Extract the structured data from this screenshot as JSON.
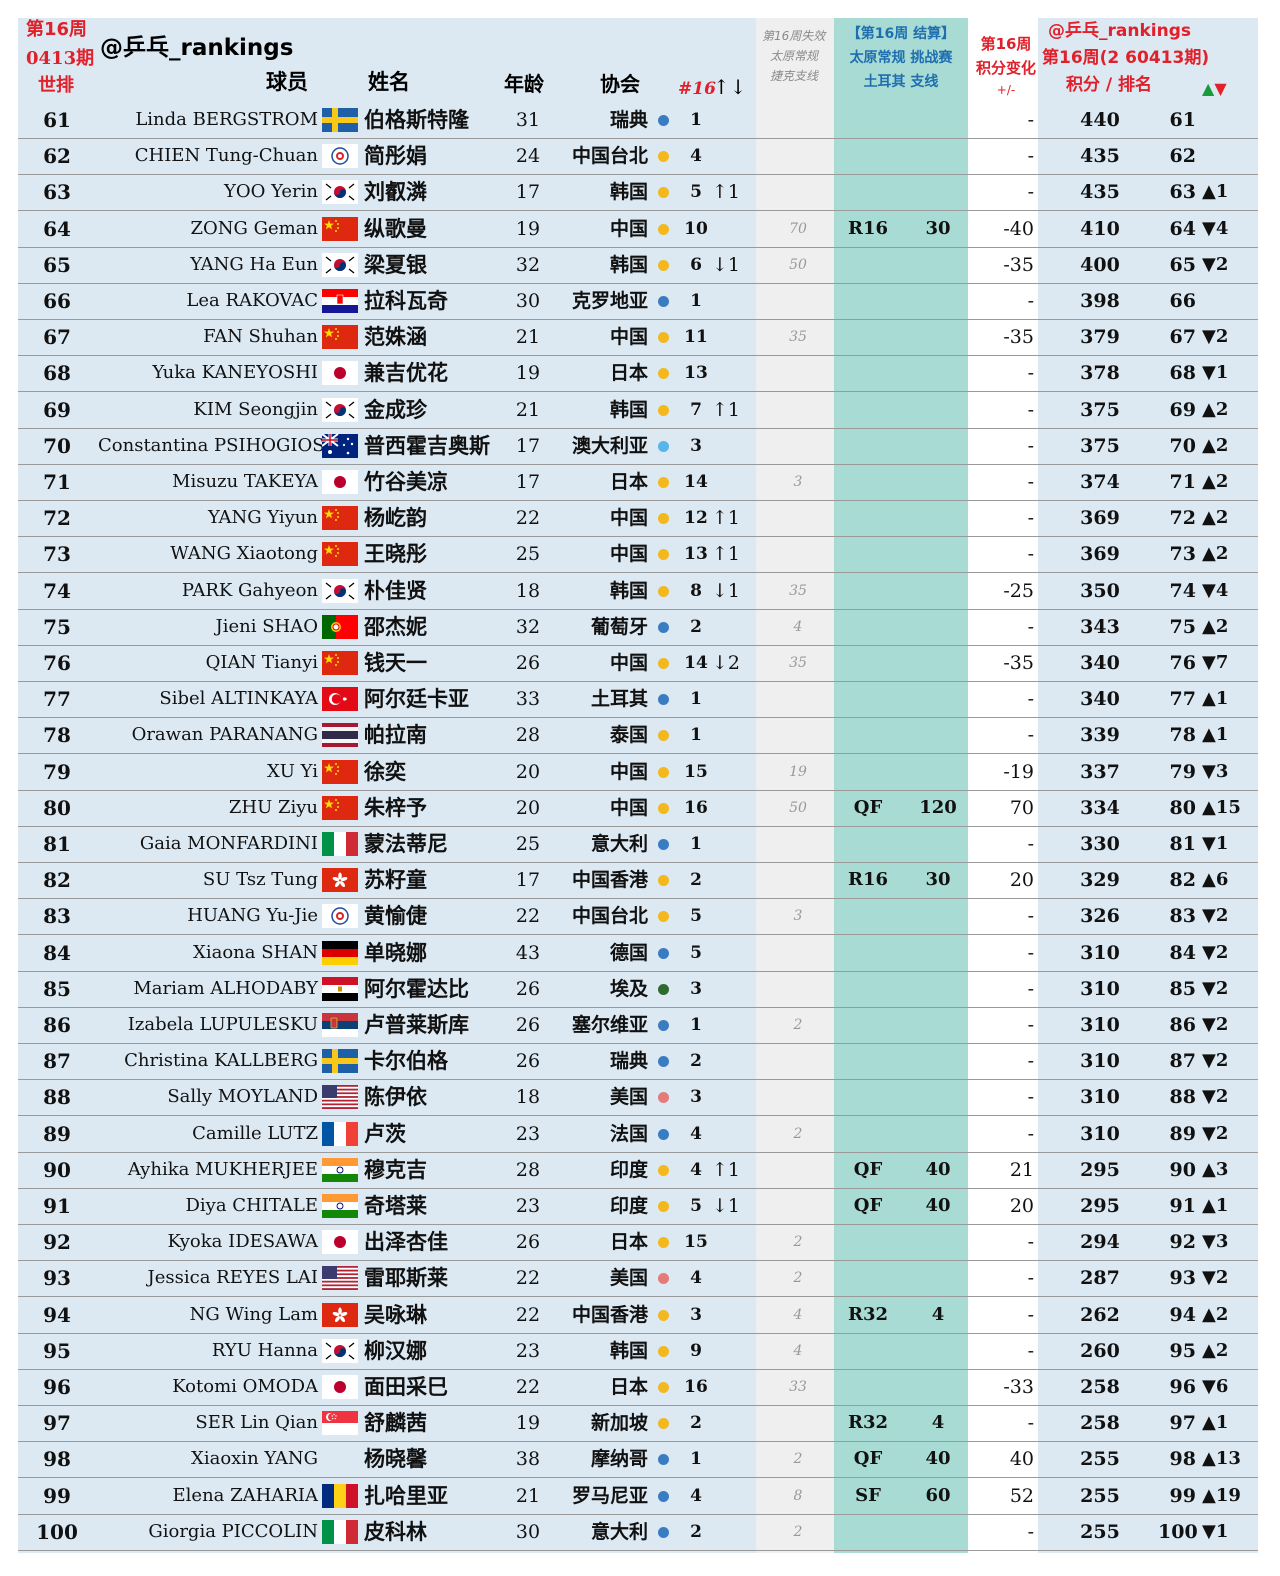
{
  "header": {
    "week_tag_1": "第16周",
    "week_tag_2": "0413期",
    "world_rank": "世排",
    "handle": "@乒乓_rankings",
    "player": "球员",
    "name": "姓名",
    "age": "年龄",
    "assoc": "协会",
    "n16": "#16",
    "n16_arrows": "↑↓",
    "lost_1": "第16周失效",
    "lost_2": "太原常规",
    "lost_3": "捷克支线",
    "result_1": "【第16周 结算】",
    "result_2": "太原常规 挑战赛",
    "result_3": "土耳其 支线",
    "change_1": "第16周",
    "change_2": "积分变化",
    "change_3": "+/-",
    "rank_1": "@乒乓_rankings",
    "rank_2": "第16周(2 60413期)",
    "rank_3": "积分 /  排名",
    "rank_arrows": "▲▼"
  },
  "colors": {
    "blue_dot": "#3a7cc2",
    "yellow_dot": "#f2b81e",
    "pink_dot": "#e57a7a",
    "lightblue_dot": "#56b6ea",
    "green_dot": "#2e6a2e",
    "band_left": "#dce9f2",
    "band_grey": "#efefef",
    "band_teal": "#a8dbd3",
    "band_white": "#ffffff",
    "band_right": "#dce9f2"
  },
  "rows": [
    {
      "rank": "61",
      "en": "Linda BERGSTROM",
      "flag": "se",
      "cn": "伯格斯特隆",
      "age": "31",
      "assoc": "瑞典",
      "dot": "blue",
      "n16": "1",
      "mv": "",
      "mvc": "",
      "lose": "",
      "rd": "",
      "rdc": "",
      "rp": "",
      "chg": "-",
      "chgc": "",
      "pts": "440",
      "rk2": "61",
      "ud": "",
      "udc": ""
    },
    {
      "rank": "62",
      "en": "CHIEN Tung-Chuan",
      "flag": "tpe",
      "cn": "简彤娟",
      "age": "24",
      "assoc": "中国台北",
      "dot": "yellow",
      "n16": "4",
      "mv": "",
      "mvc": "",
      "lose": "",
      "rd": "",
      "rdc": "",
      "rp": "",
      "chg": "-",
      "chgc": "",
      "pts": "435",
      "rk2": "62",
      "ud": "",
      "udc": ""
    },
    {
      "rank": "63",
      "en": "YOO Yerin",
      "flag": "kr",
      "cn": "刘叡潾",
      "age": "17",
      "assoc": "韩国",
      "dot": "yellow",
      "n16": "5",
      "mv": "↑1",
      "mvc": "green",
      "lose": "",
      "rd": "",
      "rdc": "",
      "rp": "",
      "chg": "-",
      "chgc": "",
      "pts": "435",
      "rk2": "63",
      "ud": "▲1",
      "udc": "green"
    },
    {
      "rank": "64",
      "en": "ZONG Geman",
      "flag": "cn",
      "cn": "纵歌曼",
      "age": "19",
      "assoc": "中国",
      "dot": "yellow",
      "n16": "10",
      "mv": "",
      "mvc": "",
      "lose": "70",
      "rd": "R16",
      "rdc": "blue",
      "rp": "30",
      "chg": "-40",
      "chgc": "red",
      "pts": "410",
      "rk2": "64",
      "ud": "▼4",
      "udc": "red"
    },
    {
      "rank": "65",
      "en": "YANG Ha Eun",
      "flag": "kr",
      "cn": "梁夏银",
      "age": "32",
      "assoc": "韩国",
      "dot": "yellow",
      "n16": "6",
      "mv": "↓1",
      "mvc": "red",
      "lose": "50",
      "rd": "",
      "rdc": "",
      "rp": "",
      "chg": "-35",
      "chgc": "red",
      "pts": "400",
      "rk2": "65",
      "ud": "▼2",
      "udc": "red"
    },
    {
      "rank": "66",
      "en": "Lea RAKOVAC",
      "flag": "hr",
      "cn": "拉科瓦奇",
      "age": "30",
      "assoc": "克罗地亚",
      "dot": "blue",
      "n16": "1",
      "mv": "",
      "mvc": "",
      "lose": "",
      "rd": "",
      "rdc": "",
      "rp": "",
      "chg": "-",
      "chgc": "",
      "pts": "398",
      "rk2": "66",
      "ud": "",
      "udc": ""
    },
    {
      "rank": "67",
      "en": "FAN Shuhan",
      "flag": "cn",
      "cn": "范姝涵",
      "age": "21",
      "assoc": "中国",
      "dot": "yellow",
      "n16": "11",
      "mv": "",
      "mvc": "",
      "lose": "35",
      "rd": "",
      "rdc": "",
      "rp": "",
      "chg": "-35",
      "chgc": "red",
      "pts": "379",
      "rk2": "67",
      "ud": "▼2",
      "udc": "red"
    },
    {
      "rank": "68",
      "en": "Yuka KANEYOSHI",
      "flag": "jp",
      "cn": "兼吉优花",
      "age": "19",
      "assoc": "日本",
      "dot": "yellow",
      "n16": "13",
      "mv": "",
      "mvc": "",
      "lose": "",
      "rd": "",
      "rdc": "",
      "rp": "",
      "chg": "-",
      "chgc": "",
      "pts": "378",
      "rk2": "68",
      "ud": "▼1",
      "udc": "red"
    },
    {
      "rank": "69",
      "en": "KIM Seongjin",
      "flag": "kr",
      "cn": "金成珍",
      "age": "21",
      "assoc": "韩国",
      "dot": "yellow",
      "n16": "7",
      "mv": "↑1",
      "mvc": "green",
      "lose": "",
      "rd": "",
      "rdc": "",
      "rp": "",
      "chg": "-",
      "chgc": "",
      "pts": "375",
      "rk2": "69",
      "ud": "▲2",
      "udc": "green"
    },
    {
      "rank": "70",
      "en": "Constantina PSIHOGIOS",
      "flag": "au",
      "cn": "普西霍吉奥斯",
      "age": "17",
      "assoc": "澳大利亚",
      "dot": "lightblue",
      "n16": "3",
      "mv": "",
      "mvc": "",
      "lose": "",
      "rd": "",
      "rdc": "",
      "rp": "",
      "chg": "-",
      "chgc": "",
      "pts": "375",
      "rk2": "70",
      "ud": "▲2",
      "udc": "green"
    },
    {
      "rank": "71",
      "en": "Misuzu TAKEYA",
      "flag": "jp",
      "cn": "竹谷美凉",
      "age": "17",
      "assoc": "日本",
      "dot": "yellow",
      "n16": "14",
      "mv": "",
      "mvc": "",
      "lose": "3",
      "rd": "",
      "rdc": "",
      "rp": "",
      "chg": "-",
      "chgc": "",
      "pts": "374",
      "rk2": "71",
      "ud": "▲2",
      "udc": "green"
    },
    {
      "rank": "72",
      "en": "YANG Yiyun",
      "flag": "cn",
      "cn": "杨屹韵",
      "age": "22",
      "assoc": "中国",
      "dot": "yellow",
      "n16": "12",
      "mv": "↑1",
      "mvc": "green",
      "lose": "",
      "rd": "",
      "rdc": "",
      "rp": "",
      "chg": "-",
      "chgc": "",
      "pts": "369",
      "rk2": "72",
      "ud": "▲2",
      "udc": "green"
    },
    {
      "rank": "73",
      "en": "WANG Xiaotong",
      "flag": "cn",
      "cn": "王晓彤",
      "age": "25",
      "assoc": "中国",
      "dot": "yellow",
      "n16": "13",
      "mv": "↑1",
      "mvc": "green",
      "lose": "",
      "rd": "",
      "rdc": "",
      "rp": "",
      "chg": "-",
      "chgc": "",
      "pts": "369",
      "rk2": "73",
      "ud": "▲2",
      "udc": "green"
    },
    {
      "rank": "74",
      "en": "PARK Gahyeon",
      "flag": "kr",
      "cn": "朴佳贤",
      "age": "18",
      "assoc": "韩国",
      "dot": "yellow",
      "n16": "8",
      "mv": "↓1",
      "mvc": "red",
      "lose": "35",
      "rd": "",
      "rdc": "",
      "rp": "",
      "chg": "-25",
      "chgc": "red",
      "pts": "350",
      "rk2": "74",
      "ud": "▼4",
      "udc": "red"
    },
    {
      "rank": "75",
      "en": "Jieni SHAO",
      "flag": "pt",
      "cn": "邵杰妮",
      "age": "32",
      "assoc": "葡萄牙",
      "dot": "blue",
      "n16": "2",
      "mv": "",
      "mvc": "",
      "lose": "4",
      "rd": "",
      "rdc": "",
      "rp": "",
      "chg": "-",
      "chgc": "",
      "pts": "343",
      "rk2": "75",
      "ud": "▲2",
      "udc": "green"
    },
    {
      "rank": "76",
      "en": "QIAN Tianyi",
      "flag": "cn",
      "cn": "钱天一",
      "age": "26",
      "assoc": "中国",
      "dot": "yellow",
      "n16": "14",
      "mv": "↓2",
      "mvc": "red",
      "lose": "35",
      "rd": "",
      "rdc": "",
      "rp": "",
      "chg": "-35",
      "chgc": "red",
      "pts": "340",
      "rk2": "76",
      "ud": "▼7",
      "udc": "red"
    },
    {
      "rank": "77",
      "en": "Sibel ALTINKAYA",
      "flag": "tr",
      "cn": "阿尔廷卡亚",
      "age": "33",
      "assoc": "土耳其",
      "dot": "blue",
      "n16": "1",
      "mv": "",
      "mvc": "",
      "lose": "",
      "rd": "",
      "rdc": "",
      "rp": "",
      "chg": "-",
      "chgc": "",
      "pts": "340",
      "rk2": "77",
      "ud": "▲1",
      "udc": "green"
    },
    {
      "rank": "78",
      "en": "Orawan PARANANG",
      "flag": "th",
      "cn": "帕拉南",
      "age": "28",
      "assoc": "泰国",
      "dot": "yellow",
      "n16": "1",
      "mv": "",
      "mvc": "",
      "lose": "",
      "rd": "",
      "rdc": "",
      "rp": "",
      "chg": "-",
      "chgc": "",
      "pts": "339",
      "rk2": "78",
      "ud": "▲1",
      "udc": "green"
    },
    {
      "rank": "79",
      "en": "XU Yi",
      "flag": "cn",
      "cn": "徐奕",
      "age": "20",
      "assoc": "中国",
      "dot": "yellow",
      "n16": "15",
      "mv": "",
      "mvc": "",
      "lose": "19",
      "rd": "",
      "rdc": "",
      "rp": "",
      "chg": "-19",
      "chgc": "red",
      "pts": "337",
      "rk2": "79",
      "ud": "▼3",
      "udc": "red"
    },
    {
      "rank": "80",
      "en": "ZHU Ziyu",
      "flag": "cn",
      "cn": "朱梓予",
      "age": "20",
      "assoc": "中国",
      "dot": "yellow",
      "n16": "16",
      "mv": "",
      "mvc": "",
      "lose": "50",
      "rd": "QF",
      "rdc": "blue",
      "rp": "120",
      "chg": "70",
      "chgc": "green",
      "pts": "334",
      "rk2": "80",
      "ud": "▲15",
      "udc": "green"
    },
    {
      "rank": "81",
      "en": "Gaia MONFARDINI",
      "flag": "it",
      "cn": "蒙法蒂尼",
      "age": "25",
      "assoc": "意大利",
      "dot": "blue",
      "n16": "1",
      "mv": "",
      "mvc": "",
      "lose": "",
      "rd": "",
      "rdc": "",
      "rp": "",
      "chg": "-",
      "chgc": "",
      "pts": "330",
      "rk2": "81",
      "ud": "▼1",
      "udc": "red"
    },
    {
      "rank": "82",
      "en": "SU Tsz Tung",
      "flag": "hk",
      "cn": "苏籽童",
      "age": "17",
      "assoc": "中国香港",
      "dot": "yellow",
      "n16": "2",
      "mv": "",
      "mvc": "",
      "lose": "",
      "rd": "R16",
      "rdc": "blue",
      "rp": "30",
      "chg": "20",
      "chgc": "green",
      "pts": "329",
      "rk2": "82",
      "ud": "▲6",
      "udc": "green"
    },
    {
      "rank": "83",
      "en": "HUANG Yu-Jie",
      "flag": "tpe",
      "cn": "黄愉倢",
      "age": "22",
      "assoc": "中国台北",
      "dot": "yellow",
      "n16": "5",
      "mv": "",
      "mvc": "",
      "lose": "3",
      "rd": "",
      "rdc": "",
      "rp": "",
      "chg": "-",
      "chgc": "",
      "pts": "326",
      "rk2": "83",
      "ud": "▼2",
      "udc": "red"
    },
    {
      "rank": "84",
      "en": "Xiaona SHAN",
      "flag": "de",
      "cn": "单晓娜",
      "age": "43",
      "assoc": "德国",
      "dot": "blue",
      "n16": "5",
      "mv": "",
      "mvc": "",
      "lose": "",
      "rd": "",
      "rdc": "",
      "rp": "",
      "chg": "-",
      "chgc": "",
      "pts": "310",
      "rk2": "84",
      "ud": "▼2",
      "udc": "red"
    },
    {
      "rank": "85",
      "en": "Mariam ALHODABY",
      "flag": "eg",
      "cn": "阿尔霍达比",
      "age": "26",
      "assoc": "埃及",
      "dot": "green",
      "n16": "3",
      "mv": "",
      "mvc": "",
      "lose": "",
      "rd": "",
      "rdc": "",
      "rp": "",
      "chg": "-",
      "chgc": "",
      "pts": "310",
      "rk2": "85",
      "ud": "▼2",
      "udc": "red"
    },
    {
      "rank": "86",
      "en": "Izabela LUPULESKU",
      "flag": "rs",
      "cn": "卢普莱斯库",
      "age": "26",
      "assoc": "塞尔维亚",
      "dot": "blue",
      "n16": "1",
      "mv": "",
      "mvc": "",
      "lose": "2",
      "rd": "",
      "rdc": "",
      "rp": "",
      "chg": "-",
      "chgc": "",
      "pts": "310",
      "rk2": "86",
      "ud": "▼2",
      "udc": "red"
    },
    {
      "rank": "87",
      "en": "Christina KALLBERG",
      "flag": "se",
      "cn": "卡尔伯格",
      "age": "26",
      "assoc": "瑞典",
      "dot": "blue",
      "n16": "2",
      "mv": "",
      "mvc": "",
      "lose": "",
      "rd": "",
      "rdc": "",
      "rp": "",
      "chg": "-",
      "chgc": "",
      "pts": "310",
      "rk2": "87",
      "ud": "▼2",
      "udc": "red"
    },
    {
      "rank": "88",
      "en": "Sally MOYLAND",
      "flag": "us",
      "cn": "陈伊依",
      "age": "18",
      "assoc": "美国",
      "dot": "pink",
      "n16": "3",
      "mv": "",
      "mvc": "",
      "lose": "",
      "rd": "",
      "rdc": "",
      "rp": "",
      "chg": "-",
      "chgc": "",
      "pts": "310",
      "rk2": "88",
      "ud": "▼2",
      "udc": "red"
    },
    {
      "rank": "89",
      "en": "Camille LUTZ",
      "flag": "fr",
      "cn": "卢茨",
      "age": "23",
      "assoc": "法国",
      "dot": "blue",
      "n16": "4",
      "mv": "",
      "mvc": "",
      "lose": "2",
      "rd": "",
      "rdc": "",
      "rp": "",
      "chg": "-",
      "chgc": "",
      "pts": "310",
      "rk2": "89",
      "ud": "▼2",
      "udc": "red"
    },
    {
      "rank": "90",
      "en": "Ayhika MUKHERJEE",
      "flag": "in",
      "cn": "穆克吉",
      "age": "28",
      "assoc": "印度",
      "dot": "yellow",
      "n16": "4",
      "mv": "↑1",
      "mvc": "green",
      "lose": "",
      "rd": "QF",
      "rdc": "orange",
      "rp": "40",
      "chg": "21",
      "chgc": "green",
      "pts": "295",
      "rk2": "90",
      "ud": "▲3",
      "udc": "green"
    },
    {
      "rank": "91",
      "en": "Diya CHITALE",
      "flag": "in",
      "cn": "奇塔莱",
      "age": "23",
      "assoc": "印度",
      "dot": "yellow",
      "n16": "5",
      "mv": "↓1",
      "mvc": "red",
      "lose": "",
      "rd": "QF",
      "rdc": "orange",
      "rp": "40",
      "chg": "20",
      "chgc": "green",
      "pts": "295",
      "rk2": "91",
      "ud": "▲1",
      "udc": "green"
    },
    {
      "rank": "92",
      "en": "Kyoka IDESAWA",
      "flag": "jp",
      "cn": "出泽杏佳",
      "age": "26",
      "assoc": "日本",
      "dot": "yellow",
      "n16": "15",
      "mv": "",
      "mvc": "",
      "lose": "2",
      "rd": "",
      "rdc": "",
      "rp": "",
      "chg": "-",
      "chgc": "",
      "pts": "294",
      "rk2": "92",
      "ud": "▼3",
      "udc": "red"
    },
    {
      "rank": "93",
      "en": "Jessica REYES LAI",
      "flag": "us",
      "cn": "雷耶斯莱",
      "age": "22",
      "assoc": "美国",
      "dot": "pink",
      "n16": "4",
      "mv": "",
      "mvc": "",
      "lose": "2",
      "rd": "",
      "rdc": "",
      "rp": "",
      "chg": "-",
      "chgc": "",
      "pts": "287",
      "rk2": "93",
      "ud": "▼2",
      "udc": "red"
    },
    {
      "rank": "94",
      "en": "NG Wing Lam",
      "flag": "hk",
      "cn": "吴咏琳",
      "age": "22",
      "assoc": "中国香港",
      "dot": "yellow",
      "n16": "3",
      "mv": "",
      "mvc": "",
      "lose": "4",
      "rd": "R32",
      "rdc": "blue",
      "rp": "4",
      "chg": "-",
      "chgc": "",
      "pts": "262",
      "rk2": "94",
      "ud": "▲2",
      "udc": "green"
    },
    {
      "rank": "95",
      "en": "RYU Hanna",
      "flag": "kr",
      "cn": "柳汉娜",
      "age": "23",
      "assoc": "韩国",
      "dot": "yellow",
      "n16": "9",
      "mv": "",
      "mvc": "",
      "lose": "4",
      "rd": "",
      "rdc": "",
      "rp": "",
      "chg": "-",
      "chgc": "",
      "pts": "260",
      "rk2": "95",
      "ud": "▲2",
      "udc": "green"
    },
    {
      "rank": "96",
      "en": "Kotomi OMODA",
      "flag": "jp",
      "cn": "面田采巳",
      "age": "22",
      "assoc": "日本",
      "dot": "yellow",
      "n16": "16",
      "mv": "",
      "mvc": "",
      "lose": "33",
      "rd": "",
      "rdc": "",
      "rp": "",
      "chg": "-33",
      "chgc": "red",
      "pts": "258",
      "rk2": "96",
      "ud": "▼6",
      "udc": "red"
    },
    {
      "rank": "97",
      "en": "SER Lin Qian",
      "flag": "sg",
      "cn": "舒麟茜",
      "age": "19",
      "assoc": "新加坡",
      "dot": "yellow",
      "n16": "2",
      "mv": "",
      "mvc": "",
      "lose": "",
      "rd": "R32",
      "rdc": "blue",
      "rp": "4",
      "chg": "-",
      "chgc": "",
      "pts": "258",
      "rk2": "97",
      "ud": "▲1",
      "udc": "green"
    },
    {
      "rank": "98",
      "en": "Xiaoxin YANG",
      "flag": "mc",
      "cn": "杨晓馨",
      "age": "38",
      "assoc": "摩纳哥",
      "dot": "blue",
      "n16": "1",
      "mv": "",
      "mvc": "",
      "lose": "2",
      "rd": "QF",
      "rdc": "orange",
      "rp": "40",
      "chg": "40",
      "chgc": "green",
      "pts": "255",
      "rk2": "98",
      "ud": "▲13",
      "udc": "green"
    },
    {
      "rank": "99",
      "en": "Elena ZAHARIA",
      "flag": "ro",
      "cn": "扎哈里亚",
      "age": "21",
      "assoc": "罗马尼亚",
      "dot": "blue",
      "n16": "4",
      "mv": "",
      "mvc": "",
      "lose": "8",
      "rd": "SF",
      "rdc": "orange",
      "rp": "60",
      "chg": "52",
      "chgc": "green",
      "pts": "255",
      "rk2": "99",
      "ud": "▲19",
      "udc": "green"
    },
    {
      "rank": "100",
      "en": "Giorgia PICCOLIN",
      "flag": "it",
      "cn": "皮科林",
      "age": "30",
      "assoc": "意大利",
      "dot": "blue",
      "n16": "2",
      "mv": "",
      "mvc": "",
      "lose": "2",
      "rd": "",
      "rdc": "",
      "rp": "",
      "chg": "-",
      "chgc": "",
      "pts": "255",
      "rk2": "100",
      "ud": "▼1",
      "udc": "red"
    }
  ]
}
